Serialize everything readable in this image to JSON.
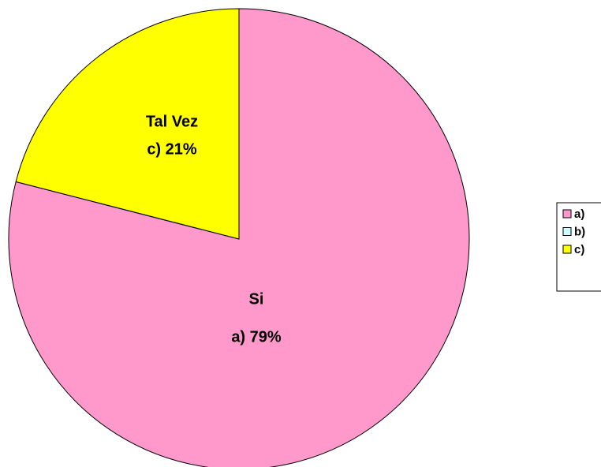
{
  "chart_data": {
    "type": "pie",
    "categories": [
      "a)",
      "b)",
      "c)"
    ],
    "category_labels": [
      "Si",
      null,
      "Tal Vez"
    ],
    "values": [
      79,
      0,
      21
    ],
    "value_labels": [
      "a) 79%",
      null,
      "c) 21%"
    ],
    "colors": [
      "#ff99cc",
      "#ccffff",
      "#ffff00"
    ],
    "legend": "right"
  }
}
